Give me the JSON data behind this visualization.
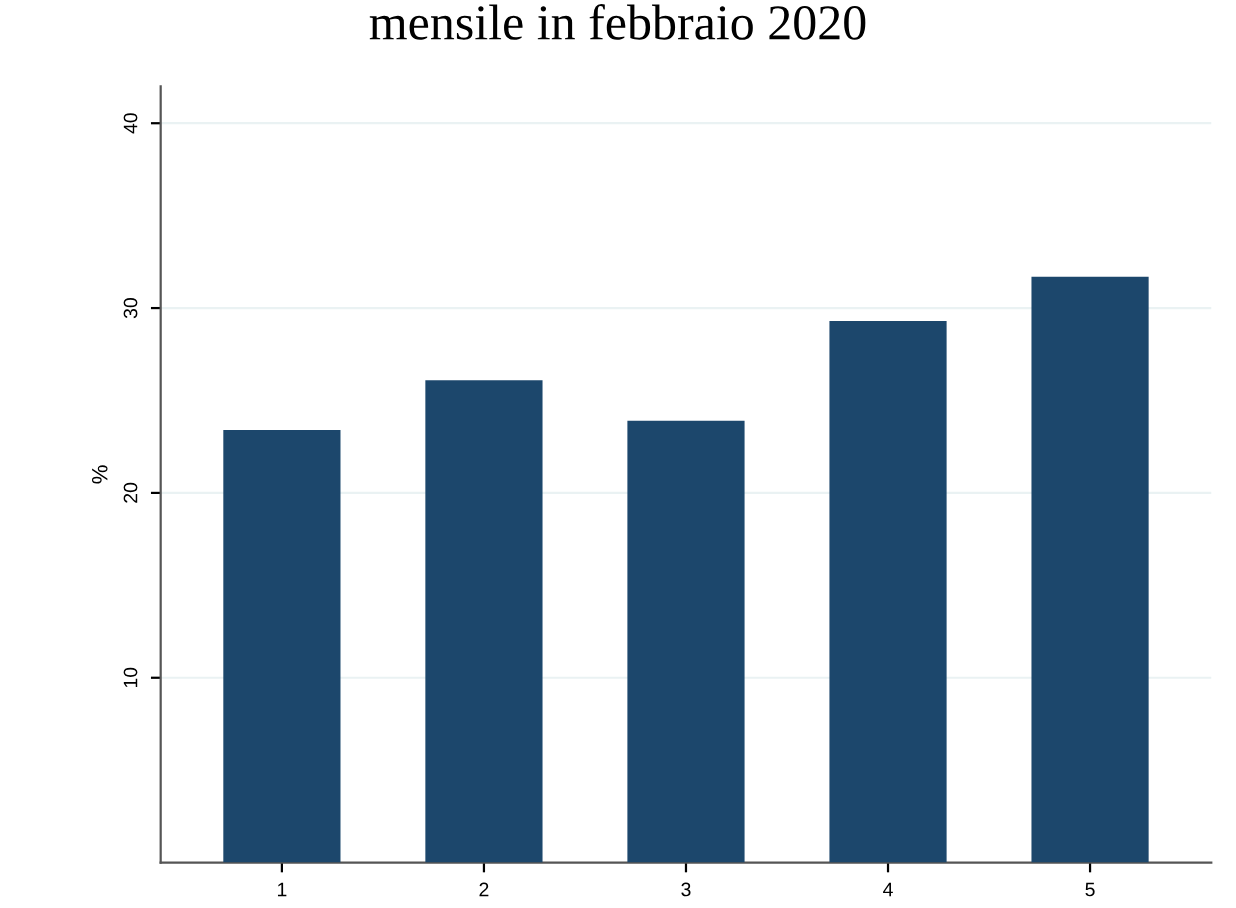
{
  "chart_data": {
    "type": "bar",
    "title": "mensile in febbraio 2020",
    "ylabel": "%",
    "categories": [
      "1",
      "2",
      "3",
      "4",
      "5"
    ],
    "values": [
      23.4,
      26.1,
      23.9,
      29.3,
      31.7
    ],
    "color": "#1c476c",
    "ylim": [
      0,
      42
    ],
    "yticks": [
      10,
      20,
      30,
      40
    ],
    "grid": "y"
  }
}
